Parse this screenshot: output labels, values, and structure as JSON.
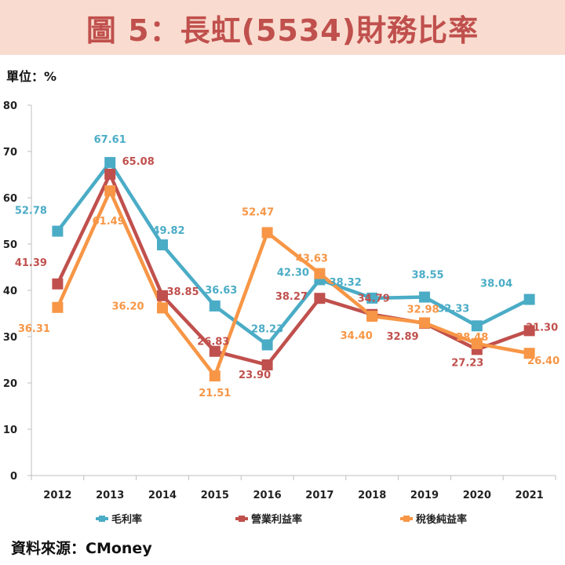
{
  "title": "圖 5：長虹(5534)財務比率",
  "unit_label": "單位：%",
  "source": "資料來源：CMoney",
  "chart_data": {
    "type": "line",
    "categories": [
      "2012",
      "2013",
      "2014",
      "2015",
      "2016",
      "2017",
      "2018",
      "2019",
      "2020",
      "2021"
    ],
    "ylim": [
      0,
      80
    ],
    "yticks": [
      0,
      10,
      20,
      30,
      40,
      50,
      60,
      70,
      80
    ],
    "series": [
      {
        "name": "毛利率",
        "color": "#4bacc6",
        "values": [
          52.78,
          67.61,
          49.82,
          36.63,
          28.23,
          42.3,
          38.32,
          38.55,
          32.33,
          38.04
        ],
        "labels": [
          "52.78",
          "67.61",
          "49.82",
          "36.63",
          "28.23",
          "42.30",
          "38.32",
          "38.55",
          "32.33",
          "38.04"
        ]
      },
      {
        "name": "營業利益率",
        "color": "#c0504d",
        "values": [
          41.39,
          65.08,
          38.85,
          26.83,
          23.9,
          38.27,
          34.79,
          32.89,
          27.23,
          31.3
        ],
        "labels": [
          "41.39",
          "65.08",
          "38.85",
          "26.83",
          "23.90",
          "38.27",
          "34.79",
          "32.89",
          "27.23",
          "31.30"
        ]
      },
      {
        "name": "稅後純益率",
        "color": "#f79646",
        "values": [
          36.31,
          61.49,
          36.2,
          21.51,
          52.47,
          43.63,
          34.4,
          32.98,
          28.48,
          26.4
        ],
        "labels": [
          "36.31",
          "61.49",
          "36.20",
          "21.51",
          "52.47",
          "43.63",
          "34.40",
          "32.98",
          "28.48",
          "26.40"
        ]
      }
    ]
  }
}
